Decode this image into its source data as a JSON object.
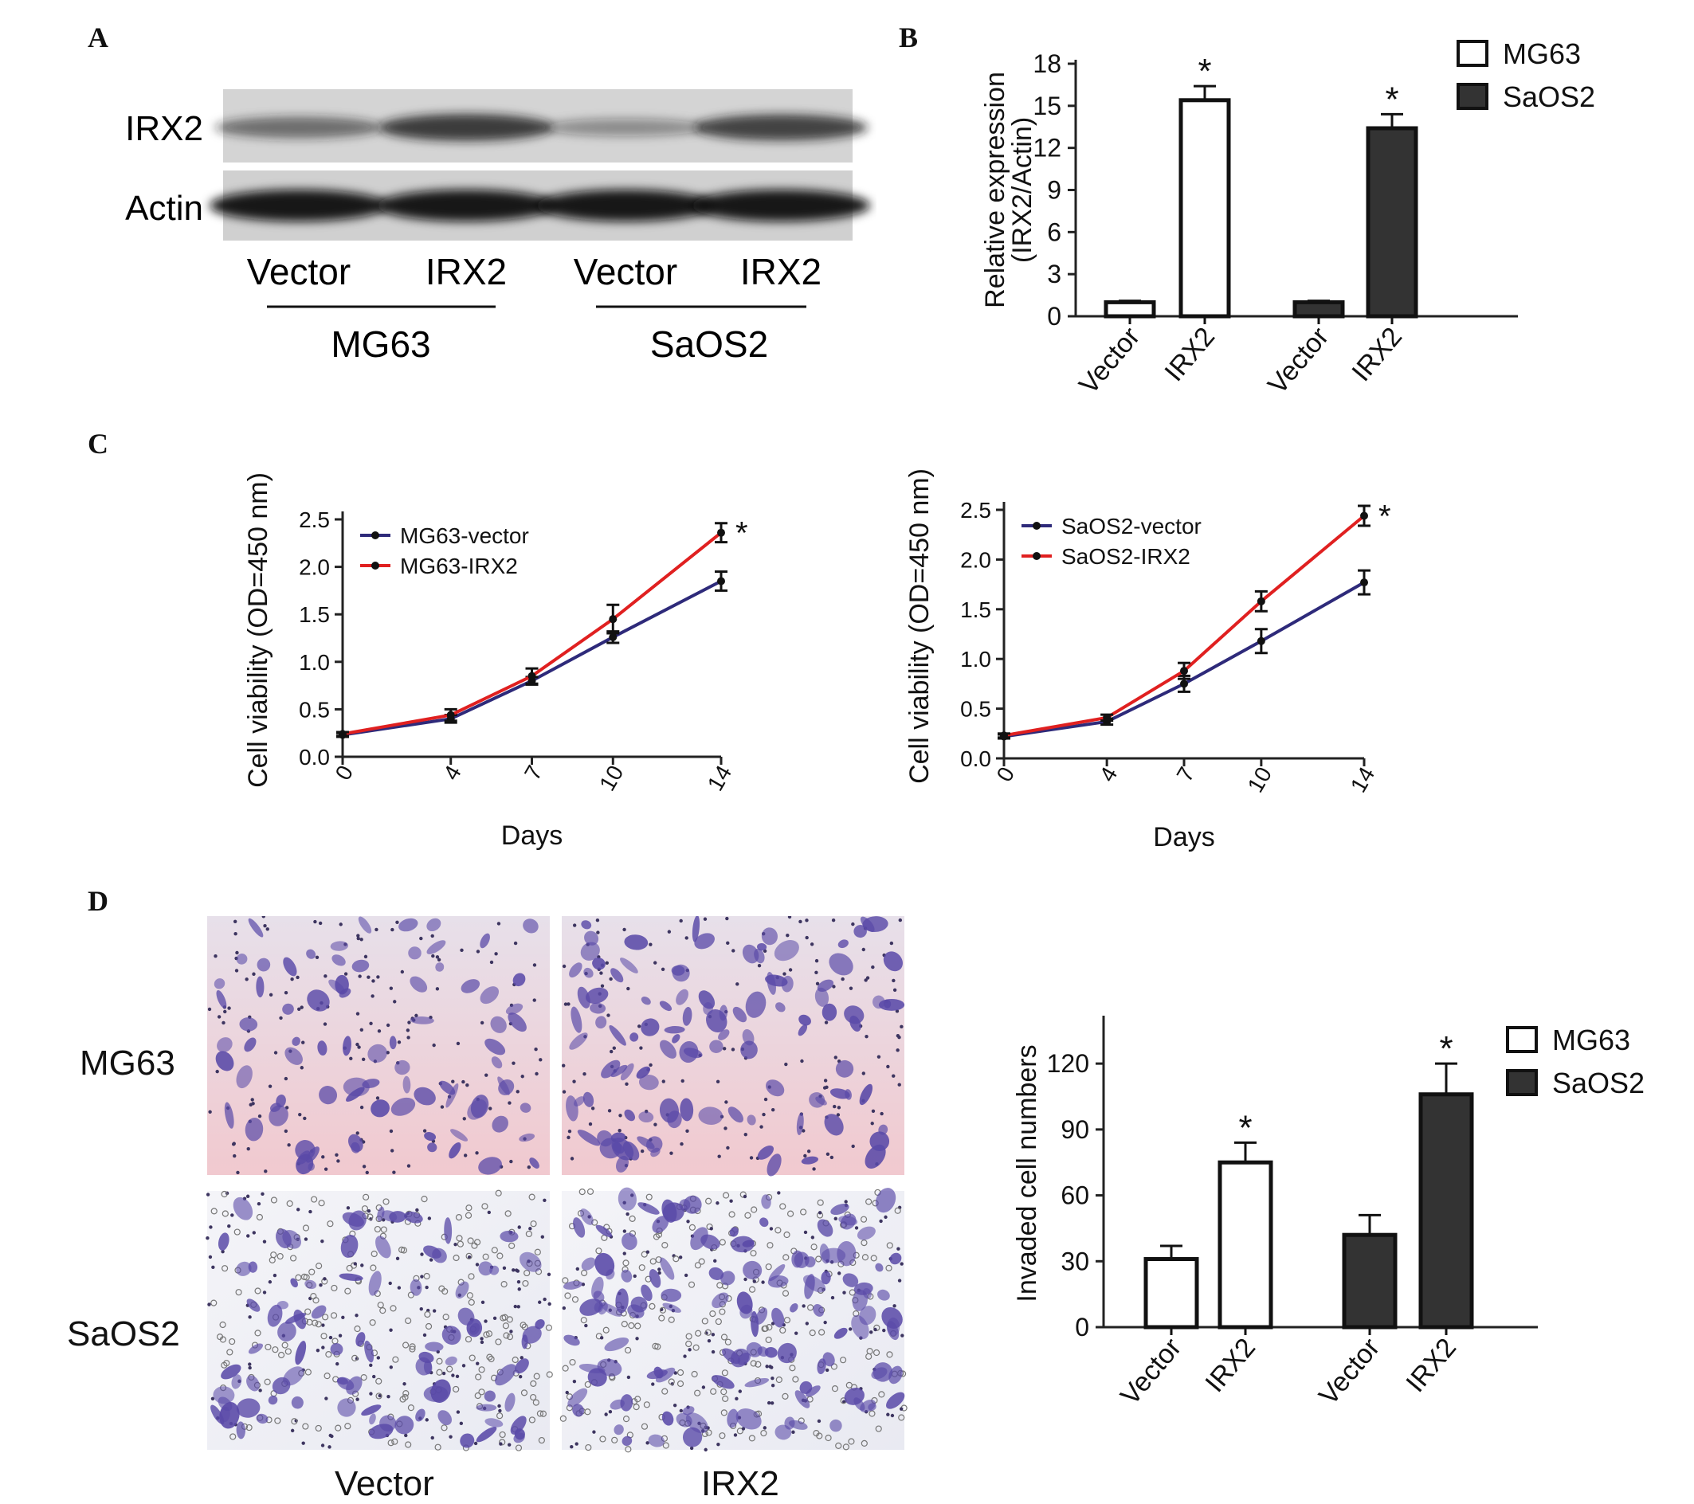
{
  "panels": {
    "a": "A",
    "b": "B",
    "c": "C",
    "d": "D"
  },
  "blot": {
    "rows": [
      "IRX2",
      "Actin"
    ],
    "lanes": [
      "Vector",
      "IRX2",
      "Vector",
      "IRX2"
    ],
    "groups": [
      "MG63",
      "SaOS2"
    ],
    "band_intensity": {
      "IRX2": [
        0.45,
        0.8,
        0.2,
        0.75
      ],
      "Actin": [
        1,
        1,
        1,
        1
      ]
    }
  },
  "colors": {
    "mg63_bar": "#ffffff",
    "saos2_bar": "#333333",
    "vector_line": "#2e2a7a",
    "irx2_line": "#e02020",
    "stain": "#5a4aa8"
  },
  "chart_data": [
    {
      "type": "bar",
      "id": "B",
      "ylabel_line1": "Relative expression",
      "ylabel_line2": "(IRX2/Actin)",
      "ylim": [
        0,
        18
      ],
      "yticks": [
        "0",
        "3",
        "6",
        "9",
        "12",
        "15",
        "18"
      ],
      "categories": [
        "Vector",
        "IRX2",
        "Vector",
        "IRX2"
      ],
      "groups": [
        "MG63",
        "MG63",
        "SaOS2",
        "SaOS2"
      ],
      "values": [
        1,
        15.4,
        1,
        13.4
      ],
      "errors": [
        0.1,
        1.0,
        0.1,
        1.0
      ],
      "significance": [
        "",
        "*",
        "",
        "*"
      ],
      "legend": [
        "MG63",
        "SaOS2"
      ],
      "legend_position": "top-right"
    },
    {
      "type": "line",
      "id": "C-left",
      "ylabel": "Cell viability (OD=450 nm)",
      "xlabel": "Days",
      "x": [
        "0",
        "4",
        "7",
        "10",
        "14"
      ],
      "ylim": [
        0,
        2.5
      ],
      "yticks": [
        "0.0",
        "0.5",
        "1.0",
        "1.5",
        "2.0",
        "2.5"
      ],
      "series": [
        {
          "name": "MG63-vector",
          "values": [
            0.23,
            0.4,
            0.8,
            1.26,
            1.85
          ],
          "errors": [
            0.02,
            0.04,
            0.04,
            0.06,
            0.1
          ]
        },
        {
          "name": "MG63-IRX2",
          "values": [
            0.24,
            0.44,
            0.85,
            1.45,
            2.36
          ],
          "errors": [
            0.02,
            0.06,
            0.08,
            0.15,
            0.1
          ]
        }
      ],
      "significance": "*",
      "legend_position": "top-left"
    },
    {
      "type": "line",
      "id": "C-right",
      "ylabel": "Cell viability (OD=450 nm)",
      "xlabel": "Days",
      "x": [
        "0",
        "4",
        "7",
        "10",
        "14"
      ],
      "ylim": [
        0,
        2.5
      ],
      "yticks": [
        "0.0",
        "0.5",
        "1.0",
        "1.5",
        "2.0",
        "2.5"
      ],
      "series": [
        {
          "name": "SaOS2-vector",
          "values": [
            0.22,
            0.37,
            0.75,
            1.18,
            1.77
          ],
          "errors": [
            0.02,
            0.03,
            0.08,
            0.12,
            0.12
          ]
        },
        {
          "name": "SaOS2-IRX2",
          "values": [
            0.23,
            0.41,
            0.88,
            1.58,
            2.44
          ],
          "errors": [
            0.02,
            0.03,
            0.08,
            0.1,
            0.1
          ]
        }
      ],
      "significance": "*",
      "legend_position": "top-left"
    },
    {
      "type": "bar",
      "id": "D-right",
      "ylabel": "Invaded cell numbers",
      "ylim": [
        0,
        140
      ],
      "yticks": [
        "0",
        "30",
        "60",
        "90",
        "120"
      ],
      "categories": [
        "Vector",
        "IRX2",
        "Vector",
        "IRX2"
      ],
      "groups": [
        "MG63",
        "MG63",
        "SaOS2",
        "SaOS2"
      ],
      "values": [
        31,
        75,
        42,
        106
      ],
      "errors": [
        6,
        9,
        9,
        14
      ],
      "significance": [
        "",
        "*",
        "",
        "*"
      ],
      "legend": [
        "MG63",
        "SaOS2"
      ],
      "legend_position": "top-right"
    }
  ],
  "micro": {
    "rows": [
      "MG63",
      "SaOS2"
    ],
    "cols": [
      "Vector",
      "IRX2"
    ],
    "cell_density": [
      [
        0.45,
        0.75
      ],
      [
        0.55,
        0.95
      ]
    ]
  }
}
